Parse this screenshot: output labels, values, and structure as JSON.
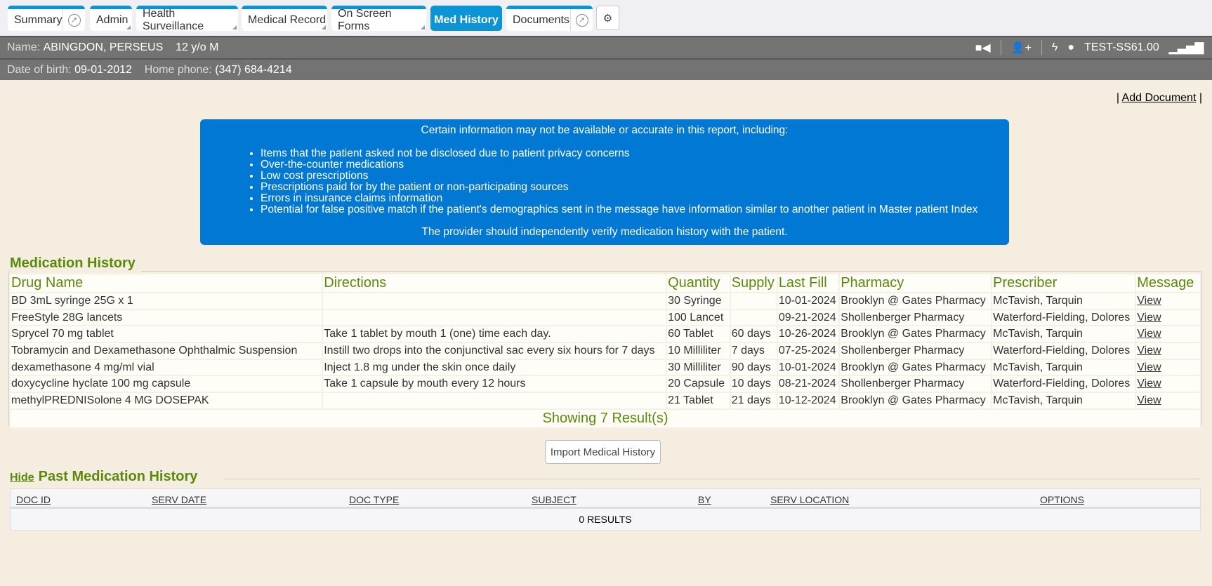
{
  "tabs": [
    {
      "label": "Summary",
      "ext": true
    },
    {
      "label": "Admin"
    },
    {
      "label": "Health Surveillance"
    },
    {
      "label": "Medical Record"
    },
    {
      "label": "On Screen Forms"
    },
    {
      "label": "Med History",
      "active": true
    },
    {
      "label": "Documents",
      "ext": true
    }
  ],
  "patient": {
    "name_label": "Name:",
    "name": "ABINGDON, PERSEUS",
    "age_sex": "12 y/o M",
    "dob_label": "Date of birth:",
    "dob": "09-01-2012",
    "phone_label": "Home phone:",
    "phone": "(347) 684-4214",
    "user": "TEST-SS61.00"
  },
  "add_document": "Add Document",
  "notice": {
    "heading": "Certain information may not be available or accurate in this report, including:",
    "items": [
      "Items that the patient asked not be disclosed due to patient privacy concerns",
      "Over-the-counter medications",
      "Low cost prescriptions",
      "Prescriptions paid for by the patient or non-participating sources",
      "Errors in insurance claims information",
      "Potential for false positive match if the patient's demographics sent in the message have information similar to another patient in Master patient Index"
    ],
    "footer": "The provider should independently verify medication history with the patient."
  },
  "med_history": {
    "title": "Medication History",
    "columns": [
      "Drug Name",
      "Directions",
      "Quantity",
      "Supply",
      "Last Fill",
      "Pharmacy",
      "Prescriber",
      "Message"
    ],
    "rows": [
      [
        "BD 3mL syringe 25G x 1",
        "",
        "30 Syringe",
        "",
        "10-01-2024",
        "Brooklyn @ Gates Pharmacy",
        "McTavish, Tarquin",
        "View"
      ],
      [
        "FreeStyle 28G lancets",
        "",
        "100 Lancet",
        "",
        "09-21-2024",
        "Shollenberger Pharmacy",
        "Waterford-Fielding, Dolores",
        "View"
      ],
      [
        "Sprycel 70 mg tablet",
        "Take 1 tablet by mouth 1 (one) time each day.",
        "60 Tablet",
        "60 days",
        "10-26-2024",
        "Brooklyn @ Gates Pharmacy",
        "McTavish, Tarquin",
        "View"
      ],
      [
        "Tobramycin and Dexamethasone Ophthalmic Suspension",
        "Instill two drops into the conjunctival sac every six hours for 7 days",
        "10 Milliliter",
        "7 days",
        "07-25-2024",
        "Shollenberger Pharmacy",
        "Waterford-Fielding, Dolores",
        "View"
      ],
      [
        "dexamethasone 4 mg/ml vial",
        "Inject 1.8 mg under the skin once daily",
        "30 Milliliter",
        "90 days",
        "10-01-2024",
        "Brooklyn @ Gates Pharmacy",
        "McTavish, Tarquin",
        "View"
      ],
      [
        "doxycycline hyclate 100 mg capsule",
        "Take 1 capsule by mouth every 12 hours",
        "20 Capsule",
        "10 days",
        "08-21-2024",
        "Shollenberger Pharmacy",
        "Waterford-Fielding, Dolores",
        "View"
      ],
      [
        "methylPREDNISolone 4 MG DOSEPAK",
        "",
        "21 Tablet",
        "21 days",
        "10-12-2024",
        "Brooklyn @ Gates Pharmacy",
        "McTavish, Tarquin",
        "View"
      ]
    ],
    "footer": "Showing 7 Result(s)"
  },
  "import_button": "Import Medical History",
  "past": {
    "hide": "Hide",
    "title": "Past Medication History",
    "columns": [
      "DOC ID",
      "SERV DATE",
      "DOC TYPE",
      "SUBJECT",
      "BY",
      "SERV LOCATION",
      "OPTIONS"
    ],
    "results": "0 RESULTS"
  }
}
